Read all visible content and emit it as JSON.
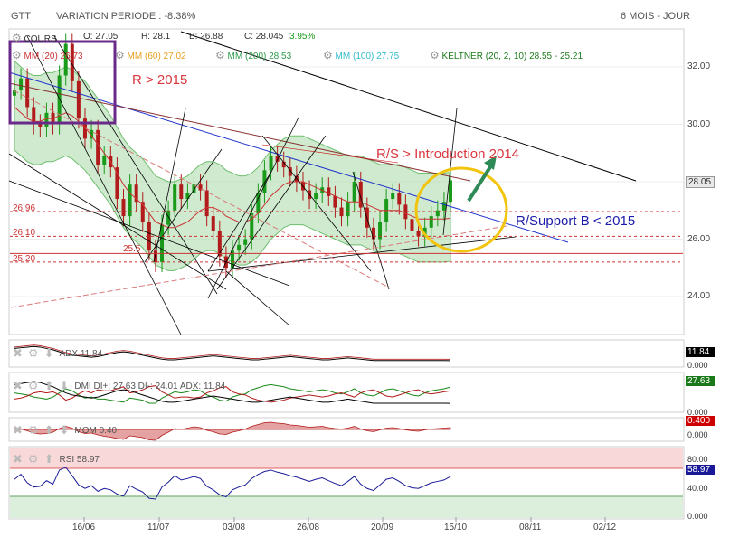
{
  "header": {
    "symbol": "GTT",
    "variation": "VARIATION PERIODE : -8.38%",
    "period": "6 MOIS - JOUR"
  },
  "legend": {
    "cours": "COURS",
    "open": "O: 27.05",
    "high": "H: 28.1",
    "low": "B: 26.88",
    "close": "C: 28.045",
    "change": "3.95%",
    "mm20": "MM (20) 26.73",
    "mm60": "MM (60) 27.02",
    "mm200": "MM (200) 28.53",
    "mm100": "MM (100) 27.75",
    "keltner": "KELTNER (20, 2, 10) 28.55 - 25.21"
  },
  "annotations": {
    "r2015": "R > 2015",
    "rs2014": "R/S > Introduction 2014",
    "support": "R/Support B < 2015"
  },
  "levels": {
    "l1": "26.96",
    "l2": "26.10",
    "l3": "25.20",
    "l4": "25.5"
  },
  "panels": {
    "adx": {
      "label": "ADX",
      "value": "11.84",
      "box": "11.84",
      "zero": "0.000"
    },
    "dmi": {
      "label": "DMI DI+: 27.63 DI-: 24.01 ADX: 11.84",
      "box": "27.63",
      "zero": "0.000"
    },
    "mom": {
      "label": "MOM",
      "value": "0.40",
      "box": "0.400",
      "zero": "0.000"
    },
    "rsi": {
      "label": "RSI",
      "value": "58.97",
      "box": "58.97",
      "t80": "80.00",
      "t40": "40.00",
      "zero": "0.000"
    }
  },
  "colors": {
    "up": "#1a9a1a",
    "down": "#b21b1b",
    "keltner_fill": "#a8d8a8",
    "mm20": "#cc3333",
    "mm60": "#e6a020",
    "mm100": "#33bbcc",
    "mm200": "#2a9a4a",
    "trend_blue": "#2233cc",
    "circle": "#f2c40e",
    "arrow": "#2e8b57",
    "anno_red": "#d9363e",
    "anno_blue": "#1a1aaa"
  },
  "chart_data": {
    "type": "line",
    "title": "GTT",
    "ylim": [
      22.8,
      33.8
    ],
    "yticks": [
      24.0,
      26.0,
      28.0,
      30.0,
      32.0
    ],
    "xticks": [
      "16/06",
      "11/07",
      "03/08",
      "26/08",
      "20/09",
      "15/10",
      "08/11",
      "02/12"
    ],
    "last_price": "28.05",
    "series": [
      {
        "name": "COURS",
        "values": [
          31.2,
          31.6,
          30.6,
          30.0,
          29.9,
          30.4,
          30.0,
          31.7,
          32.8,
          31.5,
          30.2,
          29.5,
          29.8,
          28.6,
          28.9,
          28.5,
          27.4,
          26.8,
          27.9,
          27.3,
          26.6,
          25.6,
          25.2,
          26.5,
          27.0,
          27.9,
          27.4,
          27.6,
          27.9,
          27.7,
          26.8,
          26.3,
          25.4,
          25.0,
          25.6,
          25.8,
          26.0,
          26.9,
          27.6,
          28.4,
          28.9,
          28.7,
          28.5,
          28.2,
          28.0,
          27.7,
          27.4,
          27.6,
          27.8,
          27.5,
          27.1,
          26.8,
          27.3,
          28.0,
          27.1,
          26.4,
          26.0,
          26.6,
          27.4,
          27.6,
          27.2,
          26.7,
          26.3,
          26.1,
          26.4,
          26.8,
          27.0,
          27.3,
          28.05
        ]
      },
      {
        "name": "MM (20)",
        "values": [
          30.6,
          30.4,
          30.2,
          30.1,
          30.1,
          30.2,
          30.2,
          30.3,
          30.4,
          30.3,
          30.1,
          29.9,
          29.6,
          29.3,
          29.0,
          28.7,
          28.3,
          27.9,
          27.6,
          27.4,
          27.2,
          26.9,
          26.6,
          26.5,
          26.4,
          26.4,
          26.5,
          26.6,
          26.8,
          27.0,
          27.1,
          27.1,
          27.0,
          26.8,
          26.7,
          26.6,
          26.6,
          26.7,
          26.9,
          27.2,
          27.5,
          27.7,
          27.9,
          28.0,
          28.0,
          28.0,
          27.9,
          27.8,
          27.7,
          27.6,
          27.5,
          27.4,
          27.3,
          27.3,
          27.3,
          27.2,
          27.1,
          27.0,
          27.0,
          27.0,
          27.0,
          26.9,
          26.8,
          26.7,
          26.7,
          26.7,
          26.7,
          26.7,
          26.73
        ]
      }
    ],
    "indicators": {
      "adx": {
        "values": [
          30,
          31,
          32,
          33,
          32,
          30,
          28,
          25,
          22,
          20,
          19,
          18,
          17,
          18,
          20,
          22,
          24,
          25,
          24,
          22,
          20,
          18,
          16,
          14,
          13,
          13,
          14,
          15,
          16,
          17,
          18,
          19,
          18,
          17,
          16,
          15,
          14,
          13,
          13,
          14,
          15,
          16,
          17,
          18,
          17,
          16,
          15,
          14,
          13,
          13,
          14,
          15,
          16,
          15,
          14,
          13,
          12,
          12,
          12,
          12,
          12,
          12,
          12,
          12,
          12,
          12,
          12,
          12,
          11.84
        ]
      },
      "di_plus": {
        "values": [
          22,
          21,
          20,
          18,
          17,
          16,
          18,
          22,
          26,
          24,
          20,
          17,
          18,
          16,
          16,
          15,
          14,
          13,
          17,
          16,
          15,
          12,
          12,
          17,
          20,
          23,
          22,
          23,
          25,
          24,
          20,
          18,
          15,
          14,
          18,
          20,
          21,
          25,
          27,
          29,
          30,
          29,
          28,
          26,
          25,
          24,
          23,
          24,
          25,
          24,
          22,
          21,
          23,
          26,
          22,
          20,
          19,
          22,
          25,
          26,
          24,
          22,
          20,
          19,
          22,
          24,
          25,
          26,
          27.63
        ]
      },
      "di_minus": {
        "values": [
          16,
          17,
          19,
          22,
          23,
          22,
          23,
          20,
          15,
          17,
          21,
          24,
          22,
          25,
          24,
          24,
          26,
          28,
          22,
          23,
          25,
          28,
          29,
          23,
          20,
          17,
          18,
          18,
          17,
          18,
          22,
          24,
          27,
          28,
          23,
          21,
          20,
          17,
          15,
          14,
          13,
          14,
          15,
          17,
          18,
          19,
          20,
          19,
          18,
          19,
          21,
          22,
          20,
          18,
          22,
          24,
          25,
          22,
          19,
          18,
          20,
          22,
          24,
          25,
          22,
          21,
          22,
          23,
          24.01
        ]
      },
      "mom": {
        "values": [
          0.2,
          0.1,
          -0.3,
          -0.8,
          -1.0,
          -0.9,
          -0.6,
          0.2,
          0.7,
          0.3,
          -0.5,
          -0.9,
          -0.8,
          -1.2,
          -1.5,
          -1.7,
          -2.0,
          -2.2,
          -1.4,
          -1.6,
          -1.8,
          -2.3,
          -2.4,
          -1.3,
          -0.6,
          0.2,
          0.0,
          0.3,
          0.6,
          0.4,
          -0.2,
          -0.5,
          -1.0,
          -1.1,
          -0.6,
          -0.3,
          0.1,
          0.7,
          1.1,
          1.5,
          1.6,
          1.4,
          1.3,
          1.0,
          0.9,
          0.7,
          0.5,
          0.6,
          0.7,
          0.4,
          0.2,
          0.1,
          0.3,
          0.7,
          0.1,
          -0.3,
          -0.5,
          -0.1,
          0.3,
          0.4,
          0.2,
          -0.1,
          -0.3,
          -0.4,
          -0.1,
          0.1,
          0.2,
          0.3,
          0.4
        ]
      },
      "rsi": {
        "values": [
          55,
          62,
          50,
          44,
          45,
          53,
          48,
          68,
          72,
          60,
          47,
          42,
          46,
          38,
          42,
          40,
          34,
          31,
          46,
          41,
          37,
          28,
          27,
          44,
          51,
          60,
          54,
          56,
          59,
          56,
          45,
          40,
          33,
          30,
          40,
          44,
          47,
          56,
          62,
          66,
          68,
          65,
          63,
          60,
          58,
          55,
          52,
          55,
          57,
          53,
          49,
          46,
          52,
          59,
          48,
          42,
          39,
          47,
          55,
          57,
          52,
          46,
          43,
          42,
          46,
          50,
          52,
          54,
          58.97
        ]
      }
    }
  }
}
